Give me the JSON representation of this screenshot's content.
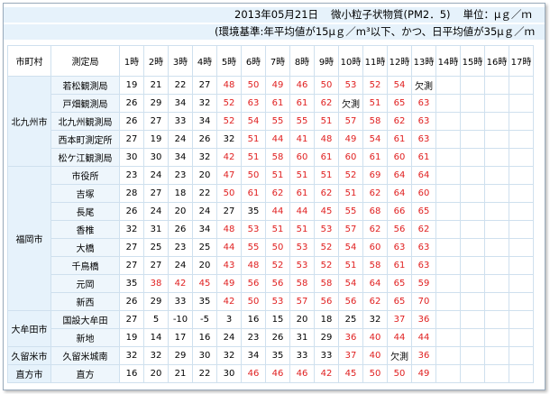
{
  "header": {
    "date": "2013年05月21日",
    "title": "微小粒子状物質(PM2．5)",
    "unit": "単位：μｇ／ｍ",
    "standard": "(環境基準:年平均値が15μｇ／m³以下、かつ、日平均値が35μｇ／ｍ"
  },
  "table": {
    "columns": [
      "市町村",
      "測定局",
      "1時",
      "2時",
      "3時",
      "4時",
      "5時",
      "6時",
      "7時",
      "8時",
      "9時",
      "10時",
      "11時",
      "12時",
      "13時",
      "14時",
      "15時",
      "16時",
      "17時"
    ],
    "groups": [
      {
        "city": "北九州市",
        "stations": [
          {
            "name": "若松観測局",
            "values": [
              19,
              21,
              22,
              27,
              48,
              50,
              49,
              46,
              50,
              53,
              52,
              54,
              "欠測"
            ]
          },
          {
            "name": "戸畑観測局",
            "values": [
              26,
              29,
              34,
              32,
              52,
              63,
              61,
              61,
              62,
              "欠測",
              51,
              65,
              63
            ]
          },
          {
            "name": "北九州観測局",
            "values": [
              26,
              27,
              33,
              34,
              52,
              54,
              55,
              55,
              51,
              57,
              58,
              62,
              63
            ]
          },
          {
            "name": "西本町測定所",
            "values": [
              27,
              19,
              24,
              26,
              32,
              51,
              44,
              41,
              48,
              49,
              54,
              61,
              63
            ]
          },
          {
            "name": "松ケ江観測局",
            "values": [
              30,
              30,
              34,
              32,
              42,
              51,
              58,
              60,
              61,
              60,
              61,
              60,
              61
            ]
          }
        ]
      },
      {
        "city": "福岡市",
        "stations": [
          {
            "name": "市役所",
            "values": [
              23,
              24,
              23,
              20,
              47,
              50,
              51,
              51,
              51,
              52,
              69,
              64,
              64
            ]
          },
          {
            "name": "吉塚",
            "values": [
              28,
              27,
              18,
              22,
              50,
              61,
              62,
              61,
              62,
              51,
              62,
              64,
              60
            ]
          },
          {
            "name": "長尾",
            "values": [
              26,
              24,
              20,
              24,
              27,
              35,
              44,
              44,
              45,
              55,
              68,
              66,
              65
            ]
          },
          {
            "name": "香椎",
            "values": [
              32,
              31,
              26,
              34,
              48,
              53,
              51,
              51,
              53,
              57,
              62,
              56,
              62
            ]
          },
          {
            "name": "大橋",
            "values": [
              27,
              25,
              23,
              25,
              44,
              55,
              50,
              53,
              52,
              54,
              60,
              63,
              63
            ]
          },
          {
            "name": "千鳥橋",
            "values": [
              27,
              27,
              24,
              20,
              43,
              48,
              52,
              53,
              52,
              51,
              58,
              61,
              63
            ]
          },
          {
            "name": "元岡",
            "values": [
              35,
              38,
              42,
              45,
              49,
              56,
              56,
              58,
              58,
              54,
              64,
              65,
              59
            ]
          },
          {
            "name": "新西",
            "values": [
              26,
              29,
              33,
              35,
              42,
              50,
              53,
              57,
              56,
              56,
              62,
              65,
              70
            ]
          }
        ]
      },
      {
        "city": "大牟田市",
        "stations": [
          {
            "name": "国設大牟田",
            "values": [
              27,
              5,
              -10,
              -5,
              3,
              16,
              15,
              20,
              18,
              25,
              32,
              37,
              36
            ]
          },
          {
            "name": "新地",
            "values": [
              19,
              14,
              17,
              16,
              24,
              23,
              26,
              31,
              29,
              36,
              40,
              44,
              44
            ]
          }
        ]
      },
      {
        "city": "久留米市",
        "stations": [
          {
            "name": "久留米城南",
            "values": [
              32,
              32,
              29,
              30,
              32,
              34,
              35,
              33,
              33,
              37,
              40,
              "欠測",
              36
            ]
          }
        ]
      },
      {
        "city": "直方市",
        "stations": [
          {
            "name": "直方",
            "values": [
              16,
              20,
              21,
              22,
              30,
              46,
              46,
              46,
              42,
              45,
              50,
              50,
              49
            ]
          }
        ]
      }
    ]
  }
}
